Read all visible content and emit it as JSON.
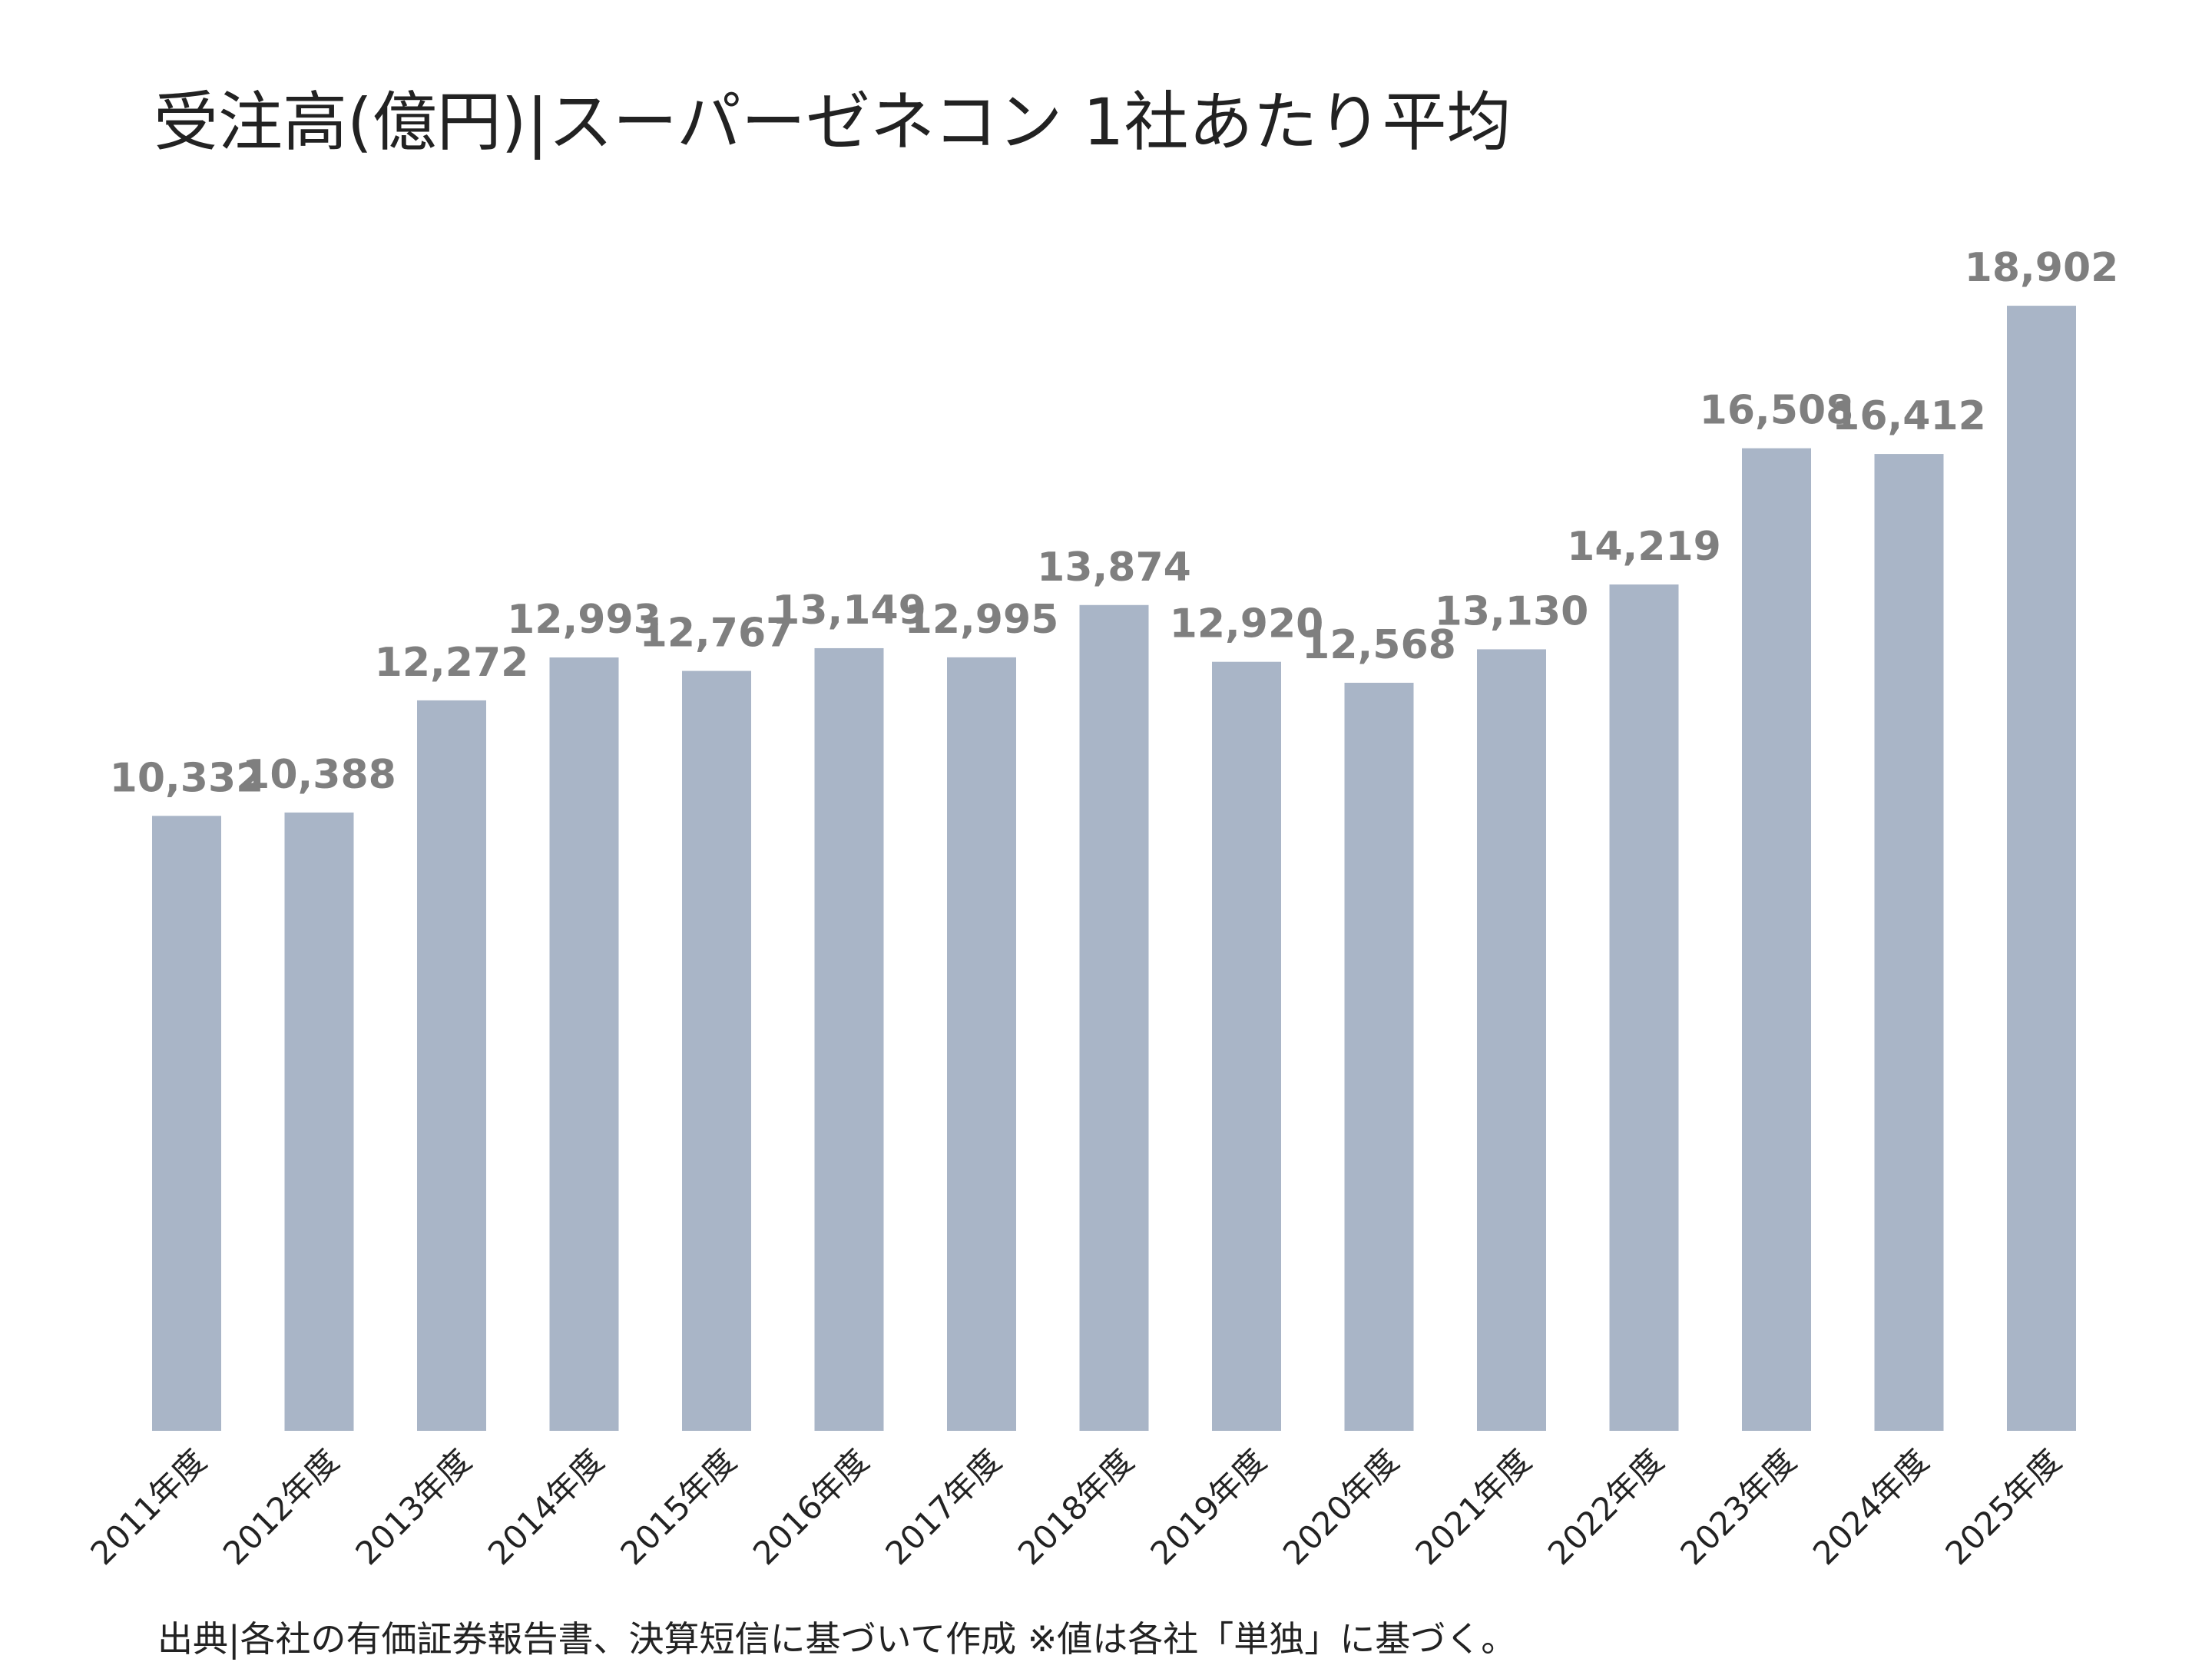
{
  "chart_data": {
    "type": "bar",
    "title": "受注高(億円)|スーパーゼネコン 1社あたり平均",
    "xlabel": "",
    "ylabel": "",
    "categories": [
      "2011年度",
      "2012年度",
      "2013年度",
      "2014年度",
      "2015年度",
      "2016年度",
      "2017年度",
      "2018年度",
      "2019年度",
      "2020年度",
      "2021年度",
      "2022年度",
      "2023年度",
      "2024年度",
      "2025年度"
    ],
    "values": [
      10332,
      10388,
      12272,
      12993,
      12767,
      13149,
      12995,
      13874,
      12920,
      12568,
      13130,
      14219,
      16508,
      16412,
      18902
    ],
    "value_labels": [
      "10,332",
      "10,388",
      "12,272",
      "12,993",
      "12,767",
      "13,149",
      "12,995",
      "13,874",
      "12,920",
      "12,568",
      "13,130",
      "14,219",
      "16,508",
      "16,412",
      "18,902"
    ],
    "ylim": [
      0,
      22500
    ],
    "grid": false,
    "legend": "none",
    "colors": {
      "bar": "#a9b5c7",
      "label": "#7f7f7f",
      "text": "#222222"
    }
  },
  "source_note": "出典|各社の有価証券報告書、決算短信に基づいて作成 ※値は各社「単独」に基づく。"
}
